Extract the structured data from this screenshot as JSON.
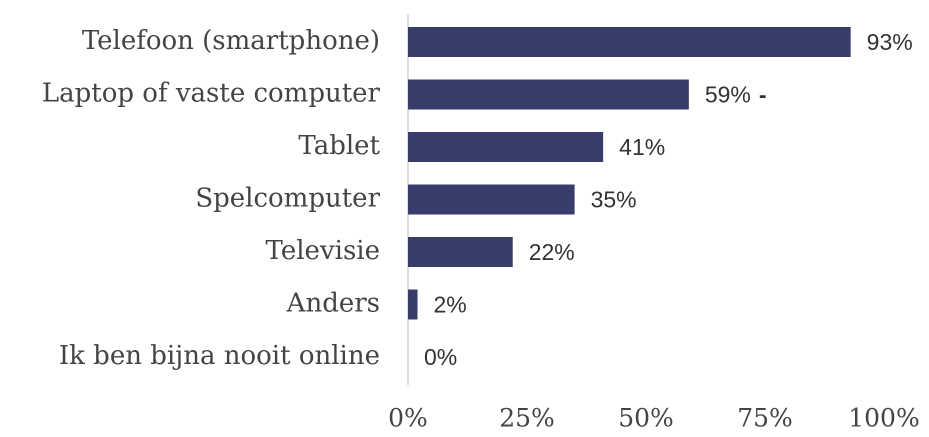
{
  "chart_data": {
    "type": "bar",
    "orientation": "horizontal",
    "categories": [
      "Telefoon (smartphone)",
      "Laptop of vaste computer",
      "Tablet",
      "Spelcomputer",
      "Televisie",
      "Anders",
      "Ik ben bijna nooit online"
    ],
    "values": [
      93,
      59,
      41,
      35,
      22,
      2,
      0
    ],
    "value_labels": [
      "93%",
      "59%",
      "41%",
      "35%",
      "22%",
      "2%",
      "0%"
    ],
    "value_markers": [
      null,
      "-",
      null,
      null,
      null,
      null,
      null
    ],
    "color": "#383c6a",
    "xlim": [
      0,
      100
    ],
    "xticks": [
      {
        "value": 0,
        "label": "0%"
      },
      {
        "value": 25,
        "label": "25%"
      },
      {
        "value": 50,
        "label": "50%"
      },
      {
        "value": 75,
        "label": "75%"
      },
      {
        "value": 100,
        "label": "100%"
      }
    ],
    "grid": false
  }
}
